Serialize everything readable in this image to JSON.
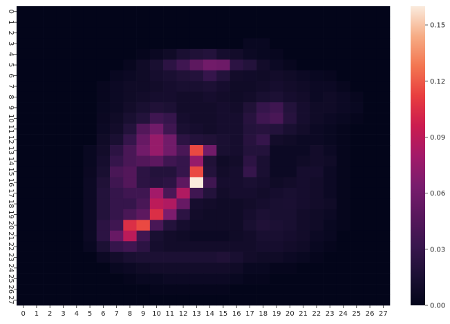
{
  "chart_data": {
    "type": "heatmap",
    "title": "",
    "xlabel": "",
    "ylabel": "",
    "x_ticks": [
      "0",
      "1",
      "2",
      "3",
      "4",
      "5",
      "6",
      "7",
      "8",
      "9",
      "10",
      "11",
      "12",
      "13",
      "14",
      "15",
      "16",
      "17",
      "18",
      "19",
      "20",
      "21",
      "22",
      "23",
      "24",
      "25",
      "26",
      "27"
    ],
    "y_ticks": [
      "0",
      "1",
      "2",
      "3",
      "4",
      "5",
      "6",
      "7",
      "8",
      "9",
      "10",
      "11",
      "12",
      "13",
      "14",
      "15",
      "16",
      "17",
      "18",
      "19",
      "20",
      "21",
      "22",
      "23",
      "24",
      "25",
      "26",
      "27"
    ],
    "colorbar": {
      "min": 0.0,
      "max": 0.16,
      "ticks": [
        0.0,
        0.03,
        0.06,
        0.09,
        0.12,
        0.15
      ],
      "tick_labels": [
        "0.00",
        "0.03",
        "0.06",
        "0.09",
        "0.12",
        "0.15"
      ],
      "colormap": "rocket"
    },
    "values": [
      [
        0,
        0,
        0,
        0,
        0,
        0,
        0,
        0,
        0,
        0,
        0,
        0,
        0,
        0,
        0,
        0,
        0,
        0,
        0,
        0,
        0,
        0,
        0,
        0,
        0,
        0,
        0,
        0
      ],
      [
        0,
        0,
        0,
        0,
        0,
        0,
        0,
        0,
        0,
        0,
        0,
        0,
        0,
        0,
        0,
        0,
        0,
        0,
        0,
        0,
        0,
        0,
        0,
        0,
        0,
        0,
        0,
        0
      ],
      [
        0,
        0,
        0,
        0,
        0,
        0,
        0,
        0,
        0,
        0,
        0,
        0,
        0,
        0,
        0,
        0,
        0,
        0,
        0,
        0,
        0,
        0,
        0,
        0,
        0,
        0,
        0,
        0
      ],
      [
        0,
        0,
        0,
        0,
        0,
        0,
        0,
        0,
        0,
        0,
        0,
        0,
        0,
        0,
        0,
        0,
        0,
        0.004,
        0.004,
        0,
        0,
        0,
        0,
        0,
        0,
        0,
        0,
        0
      ],
      [
        0,
        0,
        0,
        0,
        0,
        0,
        0,
        0,
        0,
        0.002,
        0.005,
        0.008,
        0.015,
        0.018,
        0.02,
        0.012,
        0.01,
        0.006,
        0.004,
        0.003,
        0,
        0,
        0,
        0,
        0,
        0,
        0,
        0
      ],
      [
        0,
        0,
        0,
        0,
        0,
        0,
        0,
        0,
        0.003,
        0.008,
        0.014,
        0.025,
        0.035,
        0.05,
        0.06,
        0.058,
        0.025,
        0.02,
        0.01,
        0.006,
        0.003,
        0,
        0,
        0,
        0,
        0,
        0,
        0
      ],
      [
        0,
        0,
        0,
        0,
        0,
        0,
        0,
        0.004,
        0.006,
        0.008,
        0.012,
        0.015,
        0.018,
        0.02,
        0.03,
        0.02,
        0.01,
        0.009,
        0.008,
        0.01,
        0.008,
        0.006,
        0.004,
        0.003,
        0,
        0,
        0,
        0
      ],
      [
        0,
        0,
        0,
        0,
        0,
        0,
        0.003,
        0.006,
        0.008,
        0.008,
        0.01,
        0.012,
        0.014,
        0.014,
        0.016,
        0.012,
        0.008,
        0.008,
        0.01,
        0.012,
        0.01,
        0.008,
        0.006,
        0.006,
        0.003,
        0,
        0,
        0
      ],
      [
        0,
        0,
        0,
        0,
        0,
        0,
        0.003,
        0.006,
        0.008,
        0.01,
        0.012,
        0.012,
        0.01,
        0.01,
        0.012,
        0.01,
        0.008,
        0.01,
        0.014,
        0.016,
        0.012,
        0.01,
        0.006,
        0.008,
        0.006,
        0.003,
        0,
        0
      ],
      [
        0,
        0,
        0,
        0,
        0,
        0,
        0.004,
        0.006,
        0.01,
        0.014,
        0.018,
        0.016,
        0.01,
        0.01,
        0.01,
        0.012,
        0.01,
        0.018,
        0.03,
        0.035,
        0.02,
        0.012,
        0.008,
        0.008,
        0.006,
        0.004,
        0,
        0
      ],
      [
        0,
        0,
        0,
        0,
        0,
        0,
        0.005,
        0.008,
        0.014,
        0.02,
        0.035,
        0.03,
        0.012,
        0.01,
        0.01,
        0.012,
        0.012,
        0.022,
        0.035,
        0.04,
        0.022,
        0.012,
        0.008,
        0.006,
        0.004,
        0.002,
        0,
        0
      ],
      [
        0,
        0,
        0,
        0,
        0,
        0,
        0.006,
        0.01,
        0.02,
        0.045,
        0.06,
        0.035,
        0.015,
        0.012,
        0.01,
        0.012,
        0.012,
        0.02,
        0.022,
        0.02,
        0.014,
        0.01,
        0.006,
        0.004,
        0.002,
        0,
        0,
        0
      ],
      [
        0,
        0,
        0,
        0,
        0,
        0,
        0.008,
        0.015,
        0.03,
        0.055,
        0.075,
        0.06,
        0.025,
        0.02,
        0.018,
        0.015,
        0.012,
        0.022,
        0.03,
        0.01,
        0.008,
        0.006,
        0.006,
        0.004,
        0.002,
        0,
        0,
        0
      ],
      [
        0,
        0,
        0,
        0,
        0,
        0.004,
        0.01,
        0.025,
        0.04,
        0.06,
        0.075,
        0.06,
        0.04,
        0.115,
        0.06,
        0.014,
        0.012,
        0.02,
        0.02,
        0.006,
        0.006,
        0.006,
        0.01,
        0.006,
        0.002,
        0,
        0,
        0
      ],
      [
        0,
        0,
        0,
        0,
        0,
        0.004,
        0.012,
        0.03,
        0.04,
        0.045,
        0.05,
        0.035,
        0.03,
        0.075,
        0.018,
        0.008,
        0.01,
        0.025,
        0.015,
        0.006,
        0.006,
        0.008,
        0.01,
        0.008,
        0.002,
        0,
        0,
        0
      ],
      [
        0,
        0,
        0,
        0,
        0,
        0.005,
        0.014,
        0.04,
        0.045,
        0.025,
        0.02,
        0.02,
        0.03,
        0.115,
        0.02,
        0.01,
        0.012,
        0.03,
        0.015,
        0.006,
        0.006,
        0.012,
        0.012,
        0.006,
        0.002,
        0,
        0,
        0
      ],
      [
        0,
        0,
        0,
        0,
        0,
        0.006,
        0.018,
        0.035,
        0.045,
        0.025,
        0.022,
        0.025,
        0.05,
        0.16,
        0.035,
        0.012,
        0.012,
        0.015,
        0.012,
        0.008,
        0.01,
        0.012,
        0.01,
        0.006,
        0.002,
        0,
        0,
        0
      ],
      [
        0,
        0,
        0,
        0,
        0,
        0.006,
        0.02,
        0.03,
        0.035,
        0.035,
        0.08,
        0.04,
        0.085,
        0.035,
        0.02,
        0.01,
        0.012,
        0.012,
        0.01,
        0.012,
        0.014,
        0.012,
        0.01,
        0.006,
        0.002,
        0,
        0,
        0
      ],
      [
        0,
        0,
        0,
        0,
        0,
        0.006,
        0.02,
        0.03,
        0.03,
        0.04,
        0.09,
        0.085,
        0.055,
        0.012,
        0.01,
        0.008,
        0.008,
        0.01,
        0.012,
        0.014,
        0.015,
        0.012,
        0.01,
        0.008,
        0.002,
        0,
        0,
        0
      ],
      [
        0,
        0,
        0,
        0,
        0,
        0.006,
        0.02,
        0.03,
        0.04,
        0.05,
        0.105,
        0.065,
        0.025,
        0.01,
        0.008,
        0.008,
        0.008,
        0.012,
        0.016,
        0.014,
        0.014,
        0.01,
        0.008,
        0.006,
        0.002,
        0,
        0,
        0
      ],
      [
        0,
        0,
        0,
        0,
        0,
        0.006,
        0.025,
        0.035,
        0.105,
        0.115,
        0.04,
        0.02,
        0.012,
        0.008,
        0.008,
        0.008,
        0.008,
        0.014,
        0.018,
        0.016,
        0.014,
        0.01,
        0.008,
        0.004,
        0.002,
        0,
        0,
        0
      ],
      [
        0,
        0,
        0,
        0,
        0,
        0.006,
        0.025,
        0.055,
        0.09,
        0.035,
        0.014,
        0.01,
        0.008,
        0.006,
        0.006,
        0.006,
        0.008,
        0.01,
        0.014,
        0.014,
        0.012,
        0.01,
        0.006,
        0.004,
        0,
        0,
        0,
        0
      ],
      [
        0,
        0,
        0,
        0,
        0,
        0.004,
        0.016,
        0.03,
        0.035,
        0.025,
        0.012,
        0.01,
        0.01,
        0.01,
        0.01,
        0.01,
        0.01,
        0.01,
        0.012,
        0.012,
        0.01,
        0.008,
        0.004,
        0.002,
        0,
        0,
        0,
        0
      ],
      [
        0,
        0,
        0,
        0,
        0,
        0,
        0.006,
        0.01,
        0.014,
        0.016,
        0.016,
        0.016,
        0.016,
        0.016,
        0.016,
        0.018,
        0.014,
        0.01,
        0.008,
        0.008,
        0.006,
        0.004,
        0.002,
        0,
        0,
        0,
        0,
        0
      ],
      [
        0,
        0,
        0,
        0,
        0,
        0,
        0,
        0.004,
        0.006,
        0.008,
        0.01,
        0.01,
        0.01,
        0.01,
        0.01,
        0.01,
        0.008,
        0.004,
        0.004,
        0.002,
        0.002,
        0,
        0,
        0,
        0,
        0,
        0,
        0
      ],
      [
        0,
        0,
        0,
        0,
        0,
        0,
        0,
        0,
        0.002,
        0.004,
        0.004,
        0.006,
        0.006,
        0.006,
        0.006,
        0.006,
        0.004,
        0.002,
        0.002,
        0,
        0,
        0,
        0,
        0,
        0,
        0,
        0,
        0
      ],
      [
        0,
        0,
        0,
        0,
        0,
        0,
        0,
        0,
        0,
        0,
        0.002,
        0.002,
        0.002,
        0.002,
        0.002,
        0.002,
        0,
        0,
        0,
        0,
        0,
        0,
        0,
        0,
        0,
        0,
        0,
        0
      ],
      [
        0,
        0,
        0,
        0,
        0,
        0,
        0,
        0,
        0,
        0,
        0,
        0,
        0,
        0,
        0,
        0,
        0,
        0,
        0,
        0,
        0,
        0,
        0,
        0,
        0,
        0,
        0,
        0
      ]
    ]
  }
}
